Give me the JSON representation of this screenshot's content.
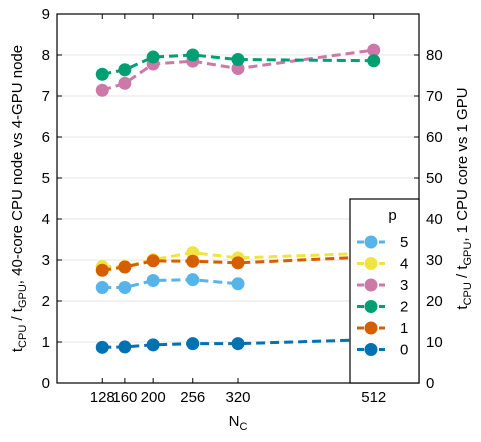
{
  "chart_data": {
    "type": "line",
    "x": [
      128,
      160,
      200,
      256,
      320,
      512
    ],
    "xlim": [
      64,
      576
    ],
    "ylim": [
      0,
      9
    ],
    "y2lim": [
      0,
      90
    ],
    "yticks": [
      0,
      1,
      2,
      3,
      4,
      5,
      6,
      7,
      8,
      9
    ],
    "y2ticks": [
      0,
      10,
      20,
      30,
      40,
      50,
      60,
      70,
      80
    ],
    "grid": "horizontal",
    "xlabel": {
      "main": "N",
      "sub": "C"
    },
    "ylabel_left": [
      {
        "t": "t",
        "s": "n"
      },
      {
        "t": "CPU",
        "s": "s"
      },
      {
        "t": " / t",
        "s": "n"
      },
      {
        "t": "GPU",
        "s": "s"
      },
      {
        "t": ", 40-core CPU node vs 4-GPU node",
        "s": "n"
      }
    ],
    "ylabel_right": [
      {
        "t": "t",
        "s": "n"
      },
      {
        "t": "CPU",
        "s": "s"
      },
      {
        "t": " / t",
        "s": "n"
      },
      {
        "t": "GPU",
        "s": "s"
      },
      {
        "t": ",  1 CPU core vs 1 GPU",
        "s": "n"
      }
    ],
    "legend": {
      "title": "p",
      "position": "right"
    },
    "series": [
      {
        "name": "5",
        "color": "#56b4e9",
        "values": [
          2.33,
          2.33,
          2.5,
          2.52,
          2.42,
          null
        ]
      },
      {
        "name": "4",
        "color": "#f0e442",
        "values": [
          2.84,
          2.84,
          3.01,
          3.18,
          3.05,
          3.17
        ]
      },
      {
        "name": "3",
        "color": "#cc79a7",
        "values": [
          7.14,
          7.31,
          7.78,
          7.85,
          7.67,
          8.12
        ]
      },
      {
        "name": "2",
        "color": "#009e73",
        "values": [
          7.53,
          7.64,
          7.95,
          8.0,
          7.89,
          7.86
        ]
      },
      {
        "name": "1",
        "color": "#d55e00",
        "values": [
          2.75,
          2.83,
          2.98,
          2.97,
          2.93,
          3.08
        ]
      },
      {
        "name": "0",
        "color": "#0072b2",
        "values": [
          0.87,
          0.88,
          0.93,
          0.96,
          0.96,
          1.06
        ]
      }
    ]
  }
}
